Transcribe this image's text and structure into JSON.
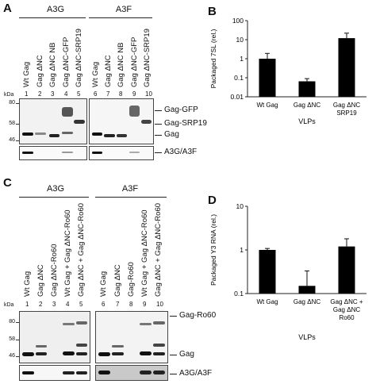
{
  "panelA": {
    "letter": "A",
    "groups": [
      "A3G",
      "A3F"
    ],
    "lanes": [
      "Wt Gag",
      "Gag ΔNC",
      "Gag ΔNC NB",
      "Gag ΔNC-GFP",
      "Gag ΔNC-SRP19",
      "Wt Gag",
      "Gag ΔNC",
      "Gag ΔNC NB",
      "Gag ΔNC-GFP",
      "Gag ΔNC-SRP19"
    ],
    "numbers": [
      "1",
      "2",
      "3",
      "4",
      "5",
      "6",
      "7",
      "8",
      "9",
      "10"
    ],
    "kda": "kDa",
    "markers": [
      "80",
      "58",
      "46"
    ],
    "right_labels": [
      "Gag-GFP",
      "Gag-SRP19",
      "Gag"
    ],
    "bottom_label": "A3G/A3F"
  },
  "panelC": {
    "letter": "C",
    "groups": [
      "A3G",
      "A3F"
    ],
    "lanes": [
      "Wt Gag",
      "Gag ΔNC",
      "Gag ΔNC-Ro60",
      "Wt Gag + Gag ΔNC-Ro60",
      "Gag ΔNC + Gag ΔNC-Ro60",
      "Wt Gag",
      "Gag ΔNC",
      "Gag-Ro60",
      "Wt Gag + Gag ΔNC-Ro60",
      "Gag ΔNC + Gag ΔNC-Ro60"
    ],
    "numbers": [
      "1",
      "2",
      "3",
      "4",
      "5",
      "6",
      "7",
      "8",
      "9",
      "10"
    ],
    "kda": "kDa",
    "markers": [
      "80",
      "58",
      "46"
    ],
    "right_labels": [
      "Gag-Ro60",
      "Gag"
    ],
    "bottom_label": "A3G/A3F"
  },
  "chart_data": [
    {
      "panel": "B",
      "type": "bar",
      "categories": [
        "Wt Gag",
        "Gag ΔNC",
        "Gag ΔNC SRP19"
      ],
      "category_lines": [
        [
          "Wt Gag"
        ],
        [
          "Gag ΔNC"
        ],
        [
          "Gag ΔNC",
          "SRP19"
        ]
      ],
      "values": [
        1.0,
        0.065,
        12.0
      ],
      "error_high": [
        1.9,
        0.09,
        22.0
      ],
      "title": "",
      "xlabel": "VLPs",
      "ylabel": "Packaged 7SL (rel.)",
      "yscale": "log",
      "ylim": [
        0.01,
        100
      ],
      "yticks": [
        "0.01",
        "0.1",
        "1",
        "10",
        "100"
      ],
      "bar_color": "#000000"
    },
    {
      "panel": "D",
      "type": "bar",
      "categories": [
        "Wt Gag",
        "Gag ΔNC",
        "Gag ΔNC + Gag ΔNC Ro60"
      ],
      "category_lines": [
        [
          "Wt Gag"
        ],
        [
          "Gag ΔNC"
        ],
        [
          "Gag ΔNC +",
          "Gag ΔNC",
          "Ro60"
        ]
      ],
      "values": [
        1.0,
        0.15,
        1.2
      ],
      "error_high": [
        1.08,
        0.33,
        1.8
      ],
      "title": "",
      "xlabel": "VLPs",
      "ylabel": "Packaged Y3 RNA (rel.)",
      "yscale": "log",
      "ylim": [
        0.1,
        10
      ],
      "yticks": [
        "0.1",
        "1",
        "10"
      ],
      "bar_color": "#000000"
    }
  ]
}
